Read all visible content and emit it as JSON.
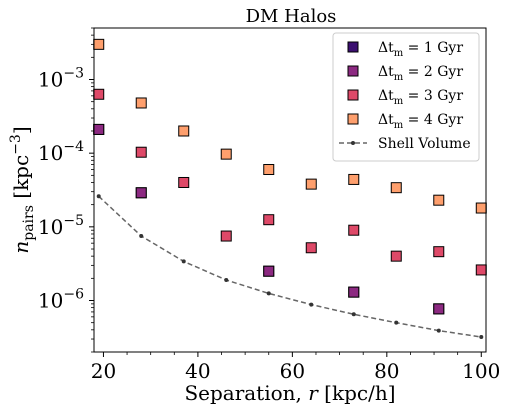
{
  "chart_data": {
    "type": "scatter",
    "title": "DM Halos",
    "xlabel": "Separation, r [kpc/h]",
    "ylabel": "n_pairs [kpc^-3]",
    "xlim": [
      18,
      101
    ],
    "ylim": [
      2e-07,
      0.005
    ],
    "yscale": "log",
    "grid": false,
    "legend_position": "top-right",
    "x_ticks": [
      {
        "value": 20,
        "label": "20"
      },
      {
        "value": 40,
        "label": "40"
      },
      {
        "value": 60,
        "label": "60"
      },
      {
        "value": 80,
        "label": "80"
      },
      {
        "value": 100,
        "label": "100"
      }
    ],
    "y_ticks": [
      {
        "value": 1e-06,
        "base": "10",
        "exp": "−6"
      },
      {
        "value": 1e-05,
        "base": "10",
        "exp": "−5"
      },
      {
        "value": 0.0001,
        "base": "10",
        "exp": "−4"
      },
      {
        "value": 0.001,
        "base": "10",
        "exp": "−3"
      }
    ],
    "series": [
      {
        "name": "Δt_m = 1 Gyr",
        "legend_prefix": "Δt",
        "legend_sub": "m",
        "legend_suffix": " = 1 Gyr",
        "color": "#3b0f70",
        "marker": "square",
        "points": [
          {
            "x": 19,
            "y": 0.00021
          },
          {
            "x": 28,
            "y": 2.9e-05
          },
          {
            "x": 55,
            "y": 2.5e-06
          },
          {
            "x": 73,
            "y": 1.3e-06
          },
          {
            "x": 91,
            "y": 7.7e-07
          }
        ]
      },
      {
        "name": "Δt_m = 2 Gyr",
        "legend_prefix": "Δt",
        "legend_sub": "m",
        "legend_suffix": " = 2 Gyr",
        "color": "#8c2981",
        "marker": "square",
        "points": [
          {
            "x": 19,
            "y": 0.00021
          },
          {
            "x": 28,
            "y": 2.9e-05
          },
          {
            "x": 55,
            "y": 2.5e-06
          },
          {
            "x": 73,
            "y": 1.3e-06
          },
          {
            "x": 91,
            "y": 7.7e-07
          }
        ]
      },
      {
        "name": "Δt_m = 3 Gyr",
        "legend_prefix": "Δt",
        "legend_sub": "m",
        "legend_suffix": " = 3 Gyr",
        "color": "#de4968",
        "marker": "square",
        "points": [
          {
            "x": 19,
            "y": 0.00063
          },
          {
            "x": 28,
            "y": 0.000103
          },
          {
            "x": 37,
            "y": 4e-05
          },
          {
            "x": 46,
            "y": 7.5e-06
          },
          {
            "x": 55,
            "y": 1.25e-05
          },
          {
            "x": 64,
            "y": 5.2e-06
          },
          {
            "x": 73,
            "y": 9e-06
          },
          {
            "x": 82,
            "y": 4e-06
          },
          {
            "x": 91,
            "y": 4.6e-06
          },
          {
            "x": 100,
            "y": 2.6e-06
          }
        ]
      },
      {
        "name": "Δt_m = 4 Gyr",
        "legend_prefix": "Δt",
        "legend_sub": "m",
        "legend_suffix": " = 4 Gyr",
        "color": "#fe9f6d",
        "marker": "square",
        "points": [
          {
            "x": 19,
            "y": 0.003
          },
          {
            "x": 28,
            "y": 0.00048
          },
          {
            "x": 37,
            "y": 0.0002
          },
          {
            "x": 46,
            "y": 9.7e-05
          },
          {
            "x": 55,
            "y": 6e-05
          },
          {
            "x": 64,
            "y": 3.8e-05
          },
          {
            "x": 73,
            "y": 4.4e-05
          },
          {
            "x": 82,
            "y": 3.4e-05
          },
          {
            "x": 91,
            "y": 2.3e-05
          },
          {
            "x": 100,
            "y": 1.8e-05
          }
        ]
      },
      {
        "name": "Shell Volume",
        "legend_prefix": "Shell Volume",
        "legend_sub": "",
        "legend_suffix": "",
        "color": "#666666",
        "marker": "dashed-line",
        "points": [
          {
            "x": 19,
            "y": 2.6e-05
          },
          {
            "x": 28,
            "y": 7.5e-06
          },
          {
            "x": 37,
            "y": 3.4e-06
          },
          {
            "x": 46,
            "y": 1.9e-06
          },
          {
            "x": 55,
            "y": 1.25e-06
          },
          {
            "x": 64,
            "y": 8.8e-07
          },
          {
            "x": 73,
            "y": 6.5e-07
          },
          {
            "x": 82,
            "y": 5e-07
          },
          {
            "x": 91,
            "y": 3.9e-07
          },
          {
            "x": 100,
            "y": 3.2e-07
          }
        ]
      }
    ]
  }
}
